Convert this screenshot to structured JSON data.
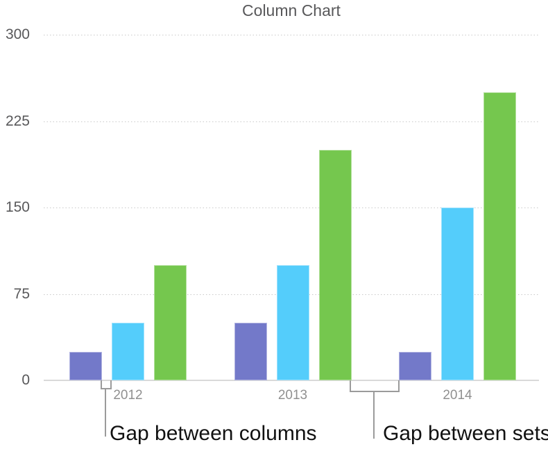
{
  "chart_data": {
    "type": "bar",
    "title": "Column Chart",
    "categories": [
      "2012",
      "2013",
      "2014"
    ],
    "series": [
      {
        "name": "purple",
        "color": "#7379c9",
        "values": [
          25,
          50,
          25
        ]
      },
      {
        "name": "blue",
        "color": "#54cdfb",
        "values": [
          50,
          100,
          150
        ]
      },
      {
        "name": "green",
        "color": "#75c74e",
        "values": [
          100,
          200,
          250
        ]
      }
    ],
    "ylim": [
      0,
      300
    ],
    "yticks": [
      0,
      75,
      150,
      225,
      300
    ],
    "grid": "dotted-horizontal",
    "legend": "none"
  },
  "annotations": {
    "gap_between_columns": "Gap between columns",
    "gap_between_sets": "Gap between sets"
  },
  "colors": {
    "title_text": "#58585a",
    "axis_tick_text": "#58585a",
    "category_text": "#909090",
    "gridline": "#c9c9c9",
    "baseline": "#d9d9d9",
    "bracket": "#9b9b9b",
    "annotation_text": "#111111"
  }
}
